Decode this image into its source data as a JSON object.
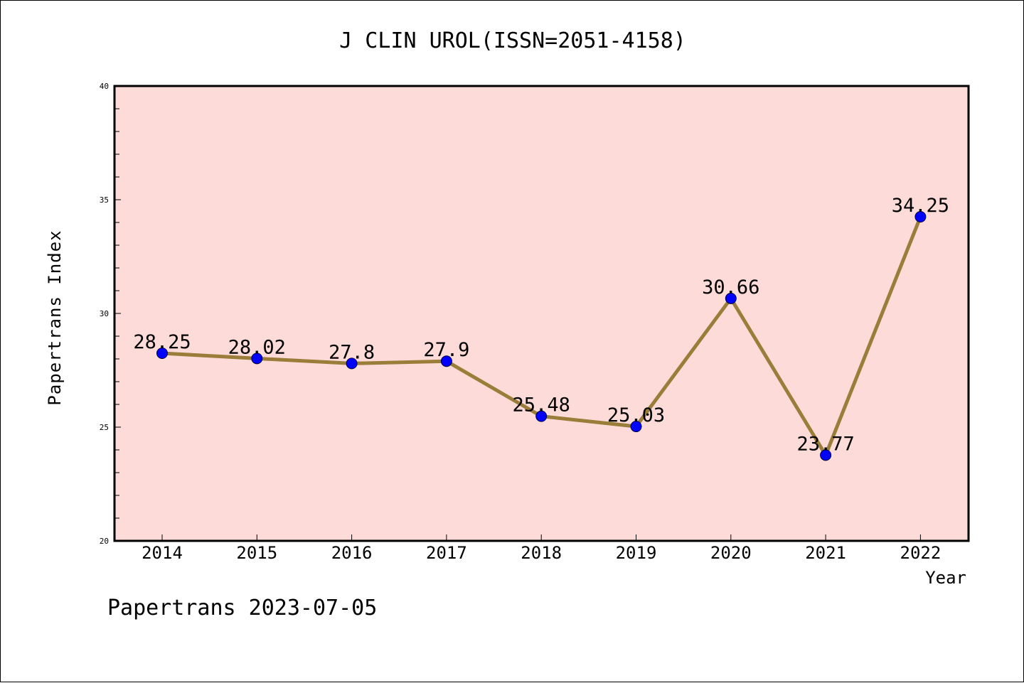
{
  "chart_data": {
    "type": "line",
    "title": "J CLIN UROL(ISSN=2051-4158)",
    "xlabel": "Year",
    "ylabel": "Papertrans Index",
    "categories": [
      "2014",
      "2015",
      "2016",
      "2017",
      "2018",
      "2019",
      "2020",
      "2021",
      "2022"
    ],
    "values": [
      28.25,
      28.02,
      27.8,
      27.9,
      25.48,
      25.03,
      30.66,
      23.77,
      34.25
    ],
    "data_labels": [
      "28.25",
      "28.02",
      "27.8",
      "27.9",
      "25.48",
      "25.03",
      "30.66",
      "23.77",
      "34.25"
    ],
    "ylim": [
      20,
      40
    ],
    "yticks": [
      "20",
      "25",
      "30",
      "35",
      "40"
    ],
    "grid": false,
    "line_color": "#9b7d3a",
    "marker_color": "#0000ff",
    "plot_background": "#fddbd8"
  },
  "footer": "Papertrans 2023-07-05"
}
